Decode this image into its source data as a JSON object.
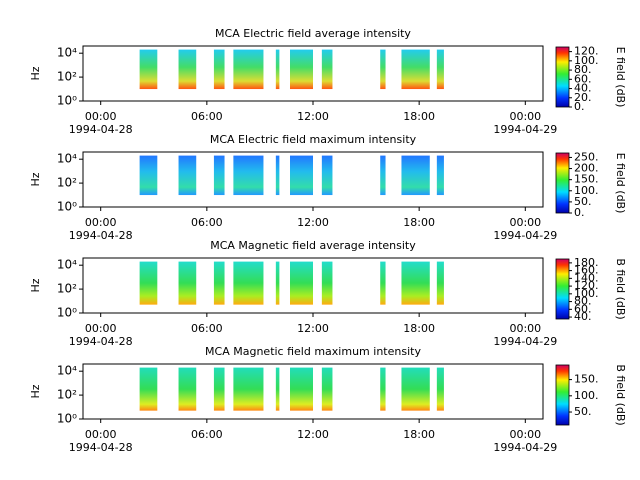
{
  "chart_data": [
    {
      "type": "spectrogram",
      "title": "MCA  Electric field average intensity",
      "ylabel": "Hz",
      "xlim": [
        -1,
        25
      ],
      "xticks": [
        {
          "value": 0,
          "label": "00:00"
        },
        {
          "value": 6,
          "label": "06:00"
        },
        {
          "value": 12,
          "label": "12:00"
        },
        {
          "value": 18,
          "label": "18:00"
        },
        {
          "value": 24,
          "label": "00:00"
        }
      ],
      "xtick_dates": [
        {
          "value": 0,
          "label": "1994-04-28"
        },
        {
          "value": 24,
          "label": "1994-04-29"
        }
      ],
      "log_y": true,
      "ylim": [
        1,
        40000
      ],
      "yticks": [
        {
          "value": 1,
          "label": "10⁰"
        },
        {
          "value": 100,
          "label": "10²"
        },
        {
          "value": 10000,
          "label": "10⁴"
        }
      ],
      "freq_range": [
        10,
        20000
      ],
      "segments": [
        [
          2.2,
          3.2
        ],
        [
          4.4,
          5.4
        ],
        [
          6.4,
          7.0
        ],
        [
          7.5,
          9.2
        ],
        [
          9.9,
          10.1
        ],
        [
          10.7,
          12.0
        ],
        [
          12.5,
          13.1
        ],
        [
          15.8,
          16.1
        ],
        [
          17.0,
          18.6
        ],
        [
          19.0,
          19.4
        ]
      ],
      "colorbar": {
        "label": "E field (dB)",
        "lim": [
          0,
          130
        ],
        "ticks": [
          {
            "value": 0,
            "label": "0."
          },
          {
            "value": 20,
            "label": "20."
          },
          {
            "value": 40,
            "label": "40."
          },
          {
            "value": 60,
            "label": "60."
          },
          {
            "value": 80,
            "label": "80."
          },
          {
            "value": 100,
            "label": "100."
          },
          {
            "value": 120,
            "label": "120."
          }
        ]
      }
    },
    {
      "type": "spectrogram",
      "title": "MCA  Electric field maximum intensity",
      "ylabel": "Hz",
      "xlim": [
        -1,
        25
      ],
      "xticks": [
        {
          "value": 0,
          "label": "00:00"
        },
        {
          "value": 6,
          "label": "06:00"
        },
        {
          "value": 12,
          "label": "12:00"
        },
        {
          "value": 18,
          "label": "18:00"
        },
        {
          "value": 24,
          "label": "00:00"
        }
      ],
      "xtick_dates": [
        {
          "value": 0,
          "label": "1994-04-28"
        },
        {
          "value": 24,
          "label": "1994-04-29"
        }
      ],
      "log_y": true,
      "ylim": [
        1,
        40000
      ],
      "yticks": [
        {
          "value": 1,
          "label": "10⁰"
        },
        {
          "value": 100,
          "label": "10²"
        },
        {
          "value": 10000,
          "label": "10⁴"
        }
      ],
      "freq_range": [
        10,
        20000
      ],
      "segments": [
        [
          2.2,
          3.2
        ],
        [
          4.4,
          5.4
        ],
        [
          6.4,
          7.0
        ],
        [
          7.5,
          9.2
        ],
        [
          9.9,
          10.1
        ],
        [
          10.7,
          12.0
        ],
        [
          12.5,
          13.1
        ],
        [
          15.8,
          16.1
        ],
        [
          17.0,
          18.6
        ],
        [
          19.0,
          19.4
        ]
      ],
      "colorbar": {
        "label": "E field (dB)",
        "lim": [
          0,
          270
        ],
        "ticks": [
          {
            "value": 0,
            "label": "0."
          },
          {
            "value": 50,
            "label": "50."
          },
          {
            "value": 100,
            "label": "100."
          },
          {
            "value": 150,
            "label": "150."
          },
          {
            "value": 200,
            "label": "200."
          },
          {
            "value": 250,
            "label": "250."
          }
        ]
      }
    },
    {
      "type": "spectrogram",
      "title": "MCA  Magnetic field average intensity",
      "ylabel": "Hz",
      "xlim": [
        -1,
        25
      ],
      "xticks": [
        {
          "value": 0,
          "label": "00:00"
        },
        {
          "value": 6,
          "label": "06:00"
        },
        {
          "value": 12,
          "label": "12:00"
        },
        {
          "value": 18,
          "label": "18:00"
        },
        {
          "value": 24,
          "label": "00:00"
        }
      ],
      "xtick_dates": [
        {
          "value": 0,
          "label": "1994-04-28"
        },
        {
          "value": 24,
          "label": "1994-04-29"
        }
      ],
      "log_y": true,
      "ylim": [
        1,
        40000
      ],
      "yticks": [
        {
          "value": 1,
          "label": "10⁰"
        },
        {
          "value": 100,
          "label": "10²"
        },
        {
          "value": 10000,
          "label": "10⁴"
        }
      ],
      "freq_range": [
        5,
        20000
      ],
      "segments": [
        [
          2.2,
          3.2
        ],
        [
          4.4,
          5.4
        ],
        [
          6.4,
          7.0
        ],
        [
          7.5,
          9.2
        ],
        [
          9.9,
          10.1
        ],
        [
          10.7,
          12.0
        ],
        [
          12.5,
          13.1
        ],
        [
          15.8,
          16.1
        ],
        [
          17.0,
          18.6
        ],
        [
          19.0,
          19.4
        ]
      ],
      "colorbar": {
        "label": "B field (dB)",
        "lim": [
          35,
          190
        ],
        "ticks": [
          {
            "value": 40,
            "label": "40."
          },
          {
            "value": 60,
            "label": "60."
          },
          {
            "value": 80,
            "label": "80."
          },
          {
            "value": 100,
            "label": "100."
          },
          {
            "value": 120,
            "label": "120."
          },
          {
            "value": 140,
            "label": "140."
          },
          {
            "value": 160,
            "label": "160."
          },
          {
            "value": 180,
            "label": "180."
          }
        ]
      }
    },
    {
      "type": "spectrogram",
      "title": "MCA  Magnetic field maximum intensity",
      "ylabel": "Hz",
      "xlim": [
        -1,
        25
      ],
      "xticks": [
        {
          "value": 0,
          "label": "00:00"
        },
        {
          "value": 6,
          "label": "06:00"
        },
        {
          "value": 12,
          "label": "12:00"
        },
        {
          "value": 18,
          "label": "18:00"
        },
        {
          "value": 24,
          "label": "00:00"
        }
      ],
      "xtick_dates": [
        {
          "value": 0,
          "label": "1994-04-28"
        },
        {
          "value": 24,
          "label": "1994-04-29"
        }
      ],
      "log_y": true,
      "ylim": [
        1,
        40000
      ],
      "yticks": [
        {
          "value": 1,
          "label": "10⁰"
        },
        {
          "value": 100,
          "label": "10²"
        },
        {
          "value": 10000,
          "label": "10⁴"
        }
      ],
      "freq_range": [
        5,
        20000
      ],
      "segments": [
        [
          2.2,
          3.2
        ],
        [
          4.4,
          5.4
        ],
        [
          6.4,
          7.0
        ],
        [
          7.5,
          9.2
        ],
        [
          9.9,
          10.1
        ],
        [
          10.7,
          12.0
        ],
        [
          12.5,
          13.1
        ],
        [
          15.8,
          16.1
        ],
        [
          17.0,
          18.6
        ],
        [
          19.0,
          19.4
        ]
      ],
      "colorbar": {
        "label": "B field (dB)",
        "lim": [
          10,
          195
        ],
        "ticks": [
          {
            "value": 50,
            "label": "50."
          },
          {
            "value": 100,
            "label": "100."
          },
          {
            "value": 150,
            "label": "150."
          }
        ]
      }
    }
  ]
}
